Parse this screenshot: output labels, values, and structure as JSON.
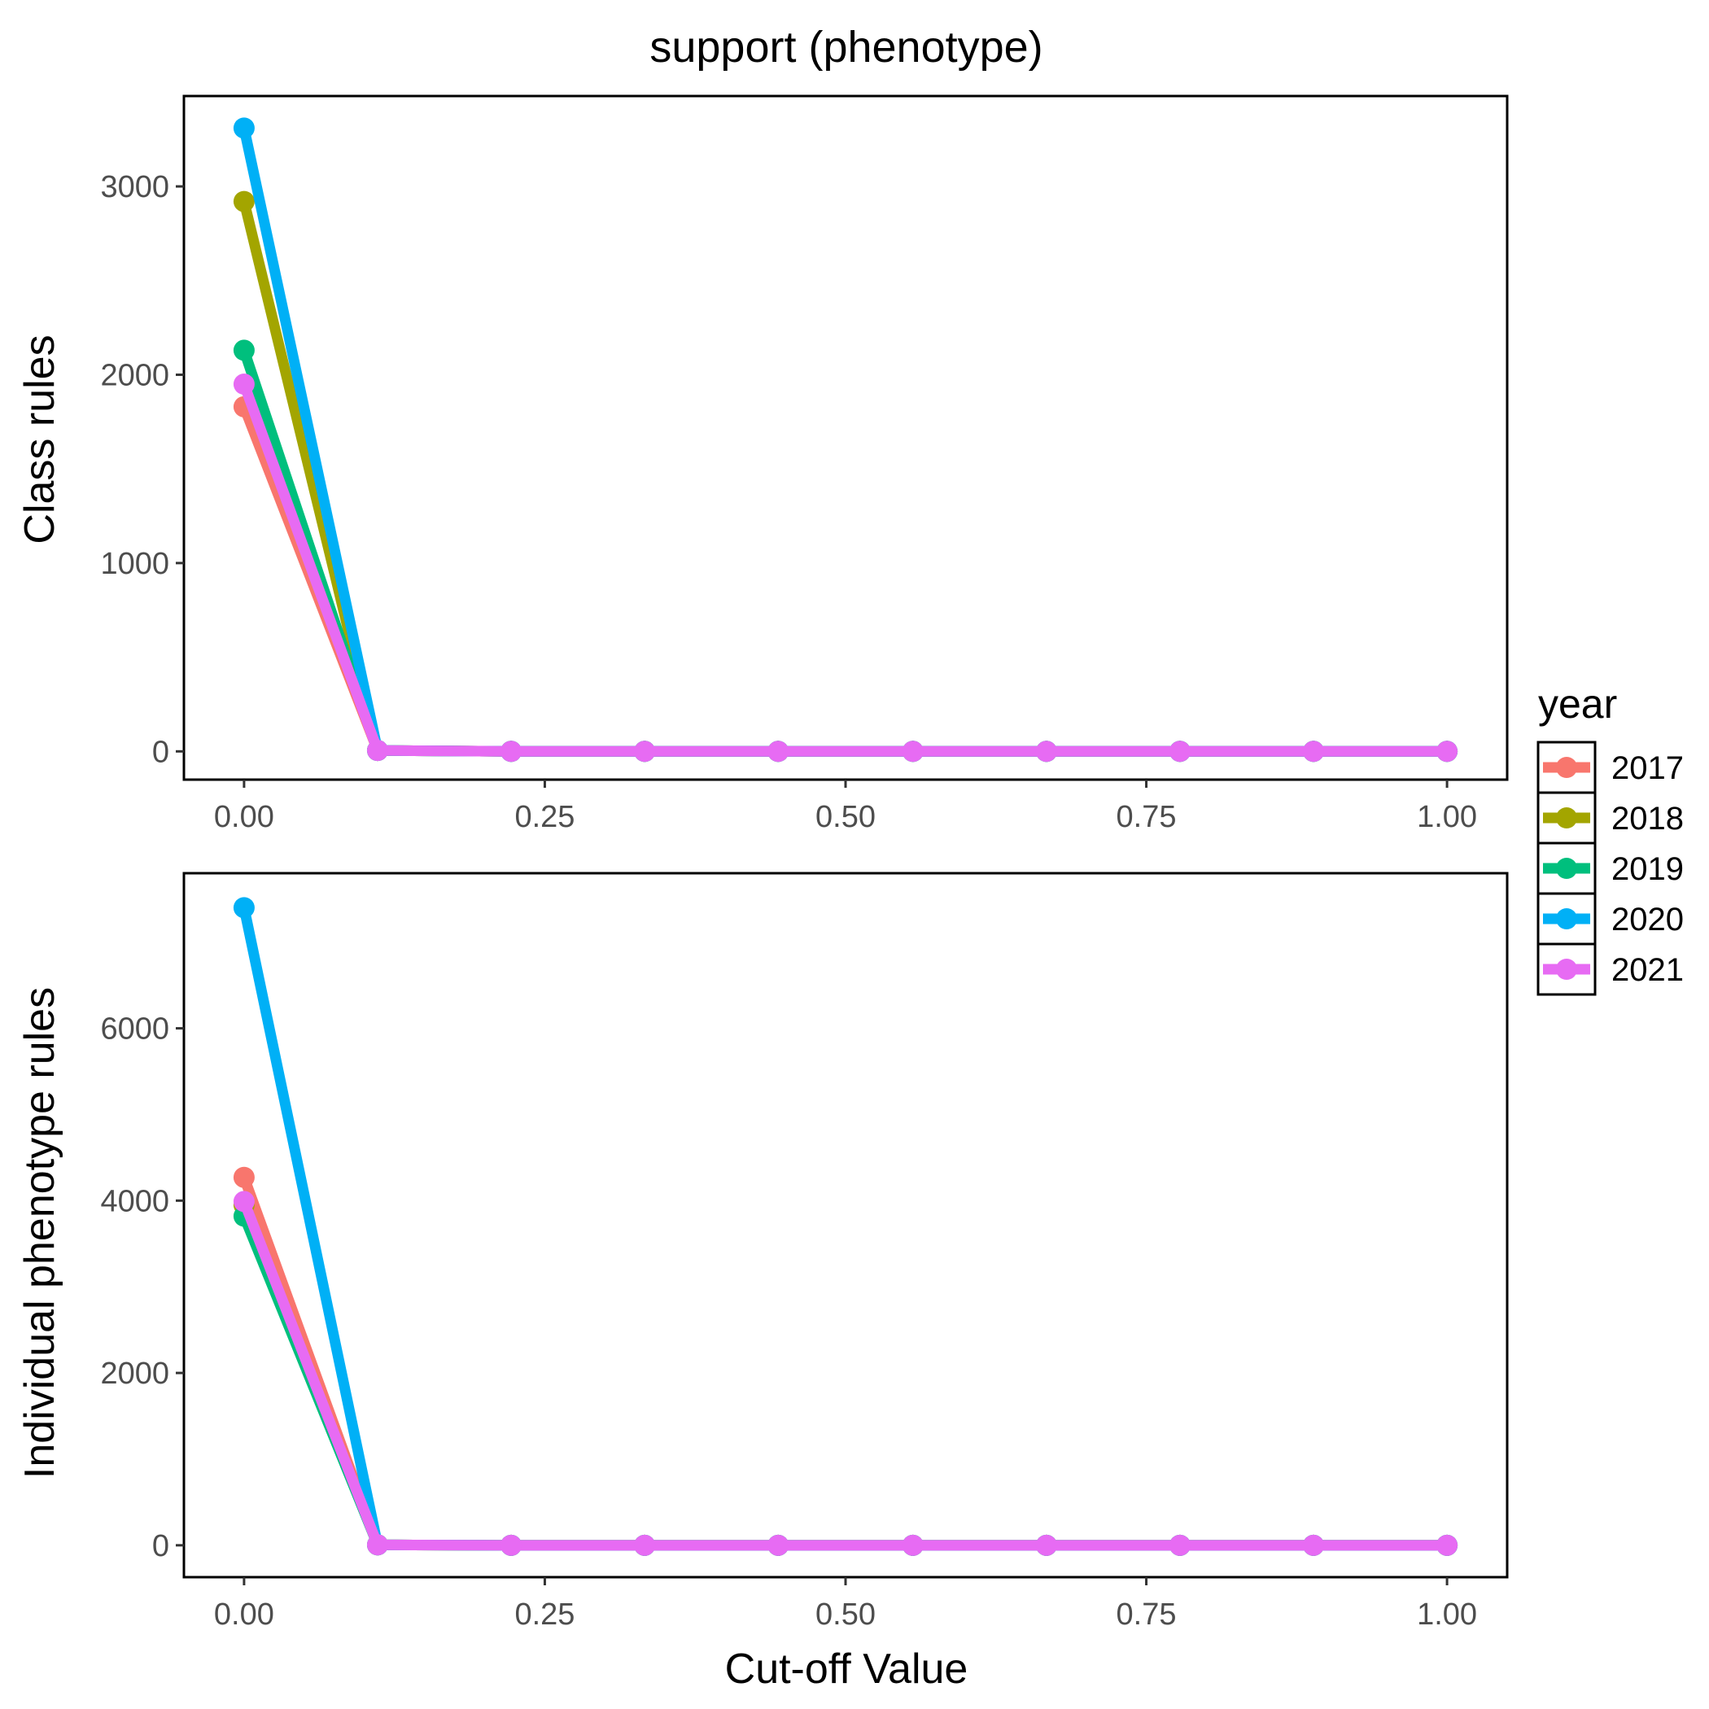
{
  "chart_data": {
    "type": "line",
    "title": "support (phenotype)",
    "xlabel": "Cut-off Value",
    "x": [
      0,
      0.111,
      0.222,
      0.333,
      0.444,
      0.556,
      0.667,
      0.778,
      0.889,
      1.0
    ],
    "xticks": [
      "0.00",
      "0.25",
      "0.50",
      "0.75",
      "1.00"
    ],
    "xlim": [
      -0.05,
      1.05
    ],
    "legend": {
      "title": "year",
      "placement": "right"
    },
    "colors": {
      "2017": "#F8766D",
      "2018": "#A3A500",
      "2019": "#00BF7D",
      "2020": "#00B0F6",
      "2021": "#E76BF3"
    },
    "grid": false,
    "panels": [
      {
        "ylabel": "Class rules",
        "ylim": [
          -150,
          3480
        ],
        "yticks": [
          "0",
          "1000",
          "2000",
          "3000"
        ],
        "series": [
          {
            "name": "2017",
            "values": [
              1830,
              5,
              0,
              0,
              0,
              0,
              0,
              0,
              0,
              0
            ]
          },
          {
            "name": "2018",
            "values": [
              2920,
              5,
              0,
              0,
              0,
              0,
              0,
              0,
              0,
              0
            ]
          },
          {
            "name": "2019",
            "values": [
              2130,
              5,
              0,
              0,
              0,
              0,
              0,
              0,
              0,
              0
            ]
          },
          {
            "name": "2020",
            "values": [
              3310,
              5,
              0,
              0,
              0,
              0,
              0,
              0,
              0,
              0
            ]
          },
          {
            "name": "2021",
            "values": [
              1950,
              5,
              0,
              0,
              0,
              0,
              0,
              0,
              0,
              0
            ]
          }
        ]
      },
      {
        "ylabel": "Individual phenotype rules",
        "ylim": [
          -370,
          7800
        ],
        "yticks": [
          "0",
          "2000",
          "4000",
          "6000"
        ],
        "series": [
          {
            "name": "2017",
            "values": [
              4270,
              5,
              0,
              0,
              0,
              0,
              0,
              0,
              0,
              0
            ]
          },
          {
            "name": "2018",
            "values": [
              3950,
              5,
              0,
              0,
              0,
              0,
              0,
              0,
              0,
              0
            ]
          },
          {
            "name": "2019",
            "values": [
              3820,
              5,
              0,
              0,
              0,
              0,
              0,
              0,
              0,
              0
            ]
          },
          {
            "name": "2020",
            "values": [
              7400,
              5,
              0,
              0,
              0,
              0,
              0,
              0,
              0,
              0
            ]
          },
          {
            "name": "2021",
            "values": [
              3990,
              5,
              0,
              0,
              0,
              0,
              0,
              0,
              0,
              0
            ]
          }
        ]
      }
    ]
  }
}
